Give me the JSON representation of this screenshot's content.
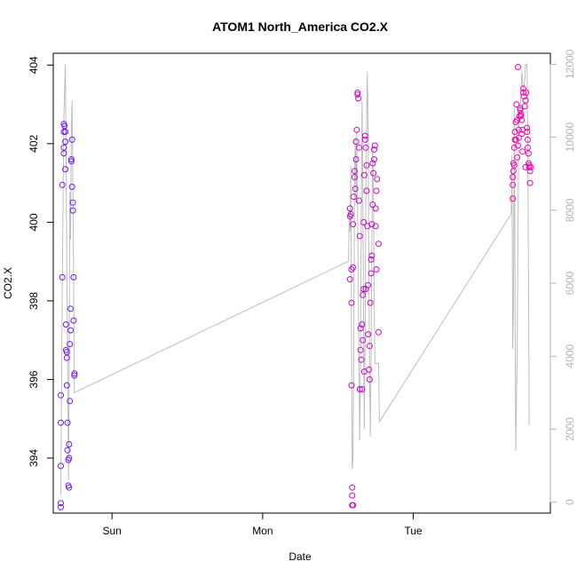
{
  "chart_data": {
    "type": "scatter",
    "title": "ATOM1 North_America CO2.X",
    "xlabel": "Date",
    "ylabel": "CO2.X",
    "x_ticks": [
      "Sun",
      "Mon",
      "Tue"
    ],
    "x_tick_days": [
      1,
      2,
      3
    ],
    "xlim_days": [
      0.61,
      3.91
    ],
    "ylim": [
      392.6,
      404.3
    ],
    "y_ticks": [
      394,
      396,
      398,
      400,
      402,
      404
    ],
    "y2_ticks": [
      0,
      2000,
      4000,
      6000,
      8000,
      10000,
      12000
    ],
    "y2lim": [
      -300,
      12300
    ],
    "grid": false,
    "color_low": "#6a1bff",
    "color_high": "#ff00a8",
    "line_color": "#bdbdbd",
    "series": [
      {
        "values": [
          {
            "x": 0.66,
            "y": 392.75
          },
          {
            "x": 0.66,
            "y": 392.85
          },
          {
            "x": 0.66,
            "y": 393.8
          },
          {
            "x": 0.66,
            "y": 394.9
          },
          {
            "x": 0.66,
            "y": 395.6
          },
          {
            "x": 0.67,
            "y": 398.6
          },
          {
            "x": 0.67,
            "y": 400.95
          },
          {
            "x": 0.68,
            "y": 401.75
          },
          {
            "x": 0.68,
            "y": 401.9
          },
          {
            "x": 0.68,
            "y": 402.3
          },
          {
            "x": 0.68,
            "y": 402.5
          },
          {
            "x": 0.685,
            "y": 402.45
          },
          {
            "x": 0.69,
            "y": 402.3
          },
          {
            "x": 0.69,
            "y": 402.05
          },
          {
            "x": 0.69,
            "y": 401.35
          },
          {
            "x": 0.695,
            "y": 397.4
          },
          {
            "x": 0.695,
            "y": 396.75
          },
          {
            "x": 0.7,
            "y": 396.7
          },
          {
            "x": 0.7,
            "y": 396.55
          },
          {
            "x": 0.7,
            "y": 395.85
          },
          {
            "x": 0.705,
            "y": 394.9
          },
          {
            "x": 0.705,
            "y": 394.2
          },
          {
            "x": 0.71,
            "y": 393.95
          },
          {
            "x": 0.71,
            "y": 393.3
          },
          {
            "x": 0.715,
            "y": 393.25
          },
          {
            "x": 0.715,
            "y": 394.35
          },
          {
            "x": 0.72,
            "y": 395.45
          },
          {
            "x": 0.72,
            "y": 396.9
          },
          {
            "x": 0.725,
            "y": 397.25
          },
          {
            "x": 0.725,
            "y": 397.8
          },
          {
            "x": 0.73,
            "y": 401.55
          },
          {
            "x": 0.73,
            "y": 401.6
          },
          {
            "x": 0.735,
            "y": 402.1
          },
          {
            "x": 0.735,
            "y": 400.9
          },
          {
            "x": 0.74,
            "y": 400.5
          },
          {
            "x": 0.74,
            "y": 400.3
          },
          {
            "x": 0.745,
            "y": 398.6
          },
          {
            "x": 0.745,
            "y": 397.5
          },
          {
            "x": 0.75,
            "y": 396.1
          },
          {
            "x": 0.75,
            "y": 396.15
          },
          {
            "x": 0.715,
            "y": 394.0
          },
          {
            "x": 2.58,
            "y": 398.55
          },
          {
            "x": 2.58,
            "y": 400.15
          },
          {
            "x": 2.58,
            "y": 400.35
          },
          {
            "x": 2.585,
            "y": 400.2
          },
          {
            "x": 2.59,
            "y": 398.8
          },
          {
            "x": 2.59,
            "y": 397.95
          },
          {
            "x": 2.59,
            "y": 395.85
          },
          {
            "x": 2.595,
            "y": 393.25
          },
          {
            "x": 2.595,
            "y": 393.05
          },
          {
            "x": 2.595,
            "y": 392.8
          },
          {
            "x": 2.6,
            "y": 392.8
          },
          {
            "x": 2.6,
            "y": 398.85
          },
          {
            "x": 2.6,
            "y": 399.95
          },
          {
            "x": 2.605,
            "y": 400.65
          },
          {
            "x": 2.61,
            "y": 401.15
          },
          {
            "x": 2.61,
            "y": 401.3
          },
          {
            "x": 2.615,
            "y": 400.85
          },
          {
            "x": 2.62,
            "y": 401.6
          },
          {
            "x": 2.62,
            "y": 402.05
          },
          {
            "x": 2.625,
            "y": 402.35
          },
          {
            "x": 2.63,
            "y": 403.3
          },
          {
            "x": 2.63,
            "y": 403.25
          },
          {
            "x": 2.635,
            "y": 403.15
          },
          {
            "x": 2.64,
            "y": 401.9
          },
          {
            "x": 2.64,
            "y": 400.55
          },
          {
            "x": 2.645,
            "y": 399.65
          },
          {
            "x": 2.65,
            "y": 397.3
          },
          {
            "x": 2.65,
            "y": 396.75
          },
          {
            "x": 2.655,
            "y": 396.5
          },
          {
            "x": 2.66,
            "y": 395.75
          },
          {
            "x": 2.66,
            "y": 397.4
          },
          {
            "x": 2.665,
            "y": 398.15
          },
          {
            "x": 2.67,
            "y": 398.3
          },
          {
            "x": 2.67,
            "y": 400.0
          },
          {
            "x": 2.675,
            "y": 401.2
          },
          {
            "x": 2.68,
            "y": 402.2
          },
          {
            "x": 2.68,
            "y": 402.1
          },
          {
            "x": 2.685,
            "y": 401.9
          },
          {
            "x": 2.69,
            "y": 401.45
          },
          {
            "x": 2.69,
            "y": 400.8
          },
          {
            "x": 2.695,
            "y": 399.9
          },
          {
            "x": 2.7,
            "y": 398.4
          },
          {
            "x": 2.7,
            "y": 397.15
          },
          {
            "x": 2.705,
            "y": 396.25
          },
          {
            "x": 2.71,
            "y": 396.0
          },
          {
            "x": 2.71,
            "y": 396.85
          },
          {
            "x": 2.715,
            "y": 397.95
          },
          {
            "x": 2.72,
            "y": 398.7
          },
          {
            "x": 2.72,
            "y": 399.05
          },
          {
            "x": 2.725,
            "y": 399.95
          },
          {
            "x": 2.73,
            "y": 400.45
          },
          {
            "x": 2.73,
            "y": 401.5
          },
          {
            "x": 2.735,
            "y": 401.25
          },
          {
            "x": 2.74,
            "y": 401.6
          },
          {
            "x": 2.74,
            "y": 401.85
          },
          {
            "x": 2.745,
            "y": 401.95
          },
          {
            "x": 2.75,
            "y": 399.9
          },
          {
            "x": 2.75,
            "y": 400.35
          },
          {
            "x": 2.755,
            "y": 400.8
          },
          {
            "x": 2.755,
            "y": 398.8
          },
          {
            "x": 2.76,
            "y": 401.1
          },
          {
            "x": 2.77,
            "y": 399.45
          },
          {
            "x": 2.77,
            "y": 397.2
          },
          {
            "x": 2.725,
            "y": 399.15
          },
          {
            "x": 2.685,
            "y": 398.3
          },
          {
            "x": 2.675,
            "y": 396.2
          },
          {
            "x": 2.665,
            "y": 397.0
          },
          {
            "x": 2.645,
            "y": 395.75
          },
          {
            "x": 3.66,
            "y": 400.6
          },
          {
            "x": 3.66,
            "y": 400.95
          },
          {
            "x": 3.66,
            "y": 401.15
          },
          {
            "x": 3.665,
            "y": 401.3
          },
          {
            "x": 3.665,
            "y": 401.5
          },
          {
            "x": 3.67,
            "y": 401.45
          },
          {
            "x": 3.67,
            "y": 401.9
          },
          {
            "x": 3.675,
            "y": 402.1
          },
          {
            "x": 3.675,
            "y": 402.3
          },
          {
            "x": 3.68,
            "y": 402.1
          },
          {
            "x": 3.68,
            "y": 402.55
          },
          {
            "x": 3.685,
            "y": 403.0
          },
          {
            "x": 3.69,
            "y": 402.6
          },
          {
            "x": 3.69,
            "y": 401.65
          },
          {
            "x": 3.695,
            "y": 401.95
          },
          {
            "x": 3.7,
            "y": 402.15
          },
          {
            "x": 3.7,
            "y": 402.35
          },
          {
            "x": 3.705,
            "y": 402.7
          },
          {
            "x": 3.71,
            "y": 402.9
          },
          {
            "x": 3.71,
            "y": 402.85
          },
          {
            "x": 3.715,
            "y": 402.75
          },
          {
            "x": 3.72,
            "y": 402.6
          },
          {
            "x": 3.72,
            "y": 402.25
          },
          {
            "x": 3.725,
            "y": 401.8
          },
          {
            "x": 3.73,
            "y": 403.4
          },
          {
            "x": 3.73,
            "y": 403.3
          },
          {
            "x": 3.735,
            "y": 403.2
          },
          {
            "x": 3.74,
            "y": 402.95
          },
          {
            "x": 3.745,
            "y": 403.1
          },
          {
            "x": 3.75,
            "y": 403.3
          },
          {
            "x": 3.755,
            "y": 402.4
          },
          {
            "x": 3.755,
            "y": 402.3
          },
          {
            "x": 3.76,
            "y": 402.1
          },
          {
            "x": 3.76,
            "y": 401.9
          },
          {
            "x": 3.765,
            "y": 401.75
          },
          {
            "x": 3.765,
            "y": 401.5
          },
          {
            "x": 3.77,
            "y": 401.4
          },
          {
            "x": 3.77,
            "y": 401.45
          },
          {
            "x": 3.775,
            "y": 401.3
          },
          {
            "x": 3.775,
            "y": 401.0
          },
          {
            "x": 3.78,
            "y": 401.4
          },
          {
            "x": 3.695,
            "y": 403.95
          },
          {
            "x": 3.715,
            "y": 402.7
          },
          {
            "x": 3.725,
            "y": 402.35
          },
          {
            "x": 3.745,
            "y": 401.4
          }
        ]
      }
    ],
    "line_series": [
      {
        "x": 0.66,
        "y2": 200
      },
      {
        "x": 0.67,
        "y2": 6000
      },
      {
        "x": 0.68,
        "y2": 10500
      },
      {
        "x": 0.69,
        "y2": 12000
      },
      {
        "x": 0.695,
        "y2": 9800
      },
      {
        "x": 0.7,
        "y2": 6200
      },
      {
        "x": 0.705,
        "y2": 4200
      },
      {
        "x": 0.71,
        "y2": 1200
      },
      {
        "x": 0.712,
        "y2": 600
      },
      {
        "x": 0.715,
        "y2": 3000
      },
      {
        "x": 0.72,
        "y2": 8500
      },
      {
        "x": 0.725,
        "y2": 7200
      },
      {
        "x": 0.73,
        "y2": 10200
      },
      {
        "x": 0.735,
        "y2": 11000
      },
      {
        "x": 0.74,
        "y2": 8800
      },
      {
        "x": 0.745,
        "y2": 6200
      },
      {
        "x": 0.75,
        "y2": 3000
      },
      {
        "x": 2.57,
        "y2": 6600
      },
      {
        "x": 2.575,
        "y2": 8000
      },
      {
        "x": 2.58,
        "y2": 7400
      },
      {
        "x": 2.585,
        "y2": 9200
      },
      {
        "x": 2.59,
        "y2": 4300
      },
      {
        "x": 2.595,
        "y2": 900
      },
      {
        "x": 2.6,
        "y2": 1200
      },
      {
        "x": 2.605,
        "y2": 4200
      },
      {
        "x": 2.61,
        "y2": 8800
      },
      {
        "x": 2.615,
        "y2": 10000
      },
      {
        "x": 2.62,
        "y2": 8200
      },
      {
        "x": 2.625,
        "y2": 10200
      },
      {
        "x": 2.63,
        "y2": 7900
      },
      {
        "x": 2.635,
        "y2": 6200
      },
      {
        "x": 2.64,
        "y2": 3300
      },
      {
        "x": 2.645,
        "y2": 1700
      },
      {
        "x": 2.65,
        "y2": 4200
      },
      {
        "x": 2.655,
        "y2": 8200
      },
      {
        "x": 2.66,
        "y2": 11000
      },
      {
        "x": 2.665,
        "y2": 8600
      },
      {
        "x": 2.67,
        "y2": 4700
      },
      {
        "x": 2.675,
        "y2": 2000
      },
      {
        "x": 2.68,
        "y2": 4700
      },
      {
        "x": 2.685,
        "y2": 8300
      },
      {
        "x": 2.69,
        "y2": 10500
      },
      {
        "x": 2.695,
        "y2": 11800
      },
      {
        "x": 2.7,
        "y2": 10000
      },
      {
        "x": 2.705,
        "y2": 6600
      },
      {
        "x": 2.71,
        "y2": 3400
      },
      {
        "x": 2.715,
        "y2": 1800
      },
      {
        "x": 2.72,
        "y2": 4200
      },
      {
        "x": 2.725,
        "y2": 7200
      },
      {
        "x": 2.73,
        "y2": 9800
      },
      {
        "x": 2.735,
        "y2": 8900
      },
      {
        "x": 2.74,
        "y2": 5800
      },
      {
        "x": 2.745,
        "y2": 3800
      },
      {
        "x": 2.77,
        "y2": 3800
      },
      {
        "x": 2.775,
        "y2": 2200
      },
      {
        "x": 3.65,
        "y2": 7900
      },
      {
        "x": 3.655,
        "y2": 9500
      },
      {
        "x": 3.66,
        "y2": 4200
      },
      {
        "x": 3.665,
        "y2": 5300
      },
      {
        "x": 3.67,
        "y2": 10800
      },
      {
        "x": 3.68,
        "y2": 1400
      },
      {
        "x": 3.69,
        "y2": 4300
      },
      {
        "x": 3.7,
        "y2": 10500
      },
      {
        "x": 3.71,
        "y2": 10800
      },
      {
        "x": 3.72,
        "y2": 11800
      },
      {
        "x": 3.73,
        "y2": 11200
      },
      {
        "x": 3.74,
        "y2": 11600
      },
      {
        "x": 3.745,
        "y2": 12000
      },
      {
        "x": 3.755,
        "y2": 12000
      },
      {
        "x": 3.76,
        "y2": 10200
      },
      {
        "x": 3.77,
        "y2": 2100
      }
    ]
  }
}
